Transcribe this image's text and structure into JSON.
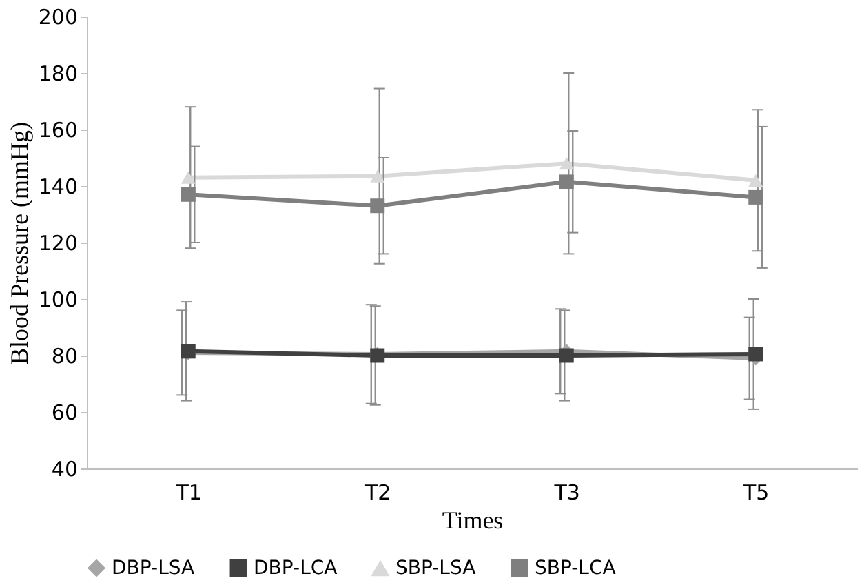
{
  "chart_data": {
    "type": "line",
    "xlabel": "Times",
    "ylabel": "Blood Pressure (mmHg)",
    "categories": [
      "T1",
      "T2",
      "T3",
      "T5"
    ],
    "series": [
      {
        "name": "DBP-LSA",
        "color": "#a6a6a6",
        "marker": "diamond",
        "values": [
          81,
          80.5,
          81.5,
          79
        ],
        "errors": [
          15,
          17.5,
          15,
          14.5
        ]
      },
      {
        "name": "DBP-LCA",
        "color": "#404040",
        "marker": "square",
        "values": [
          81.5,
          80,
          80,
          80.5
        ],
        "errors": [
          17.5,
          17.5,
          16,
          19.5
        ]
      },
      {
        "name": "SBP-LSA",
        "color": "#d9d9d9",
        "marker": "triangle",
        "values": [
          143,
          143.5,
          148,
          142
        ],
        "errors": [
          25,
          31,
          32,
          25
        ]
      },
      {
        "name": "SBP-LCA",
        "color": "#7f7f7f",
        "marker": "square",
        "values": [
          137,
          133,
          141.5,
          136
        ],
        "errors": [
          17,
          17,
          18,
          25
        ]
      }
    ],
    "ylim": [
      40,
      200
    ],
    "yticks": [
      40,
      60,
      80,
      100,
      120,
      140,
      160,
      180,
      200
    ],
    "grid": false,
    "legend": "bottom"
  }
}
